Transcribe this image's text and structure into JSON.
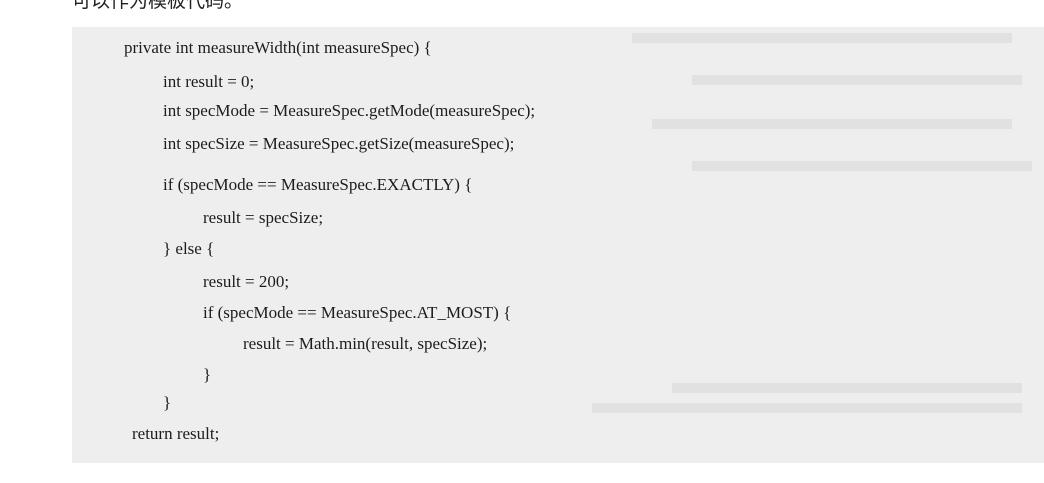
{
  "header_text": "可以作为模板代码。",
  "code_lines": [
    "private int measureWidth(int measureSpec) {",
    "int result = 0;",
    "int specMode = MeasureSpec.getMode(measureSpec);",
    "int specSize = MeasureSpec.getSize(measureSpec);",
    "if (specMode == MeasureSpec.EXACTLY) {",
    "result = specSize;",
    "} else {",
    "result = 200;",
    "if (specMode == MeasureSpec.AT_MOST) {",
    "result = Math.min(result, specSize);",
    "}",
    "}",
    "return result;"
  ]
}
